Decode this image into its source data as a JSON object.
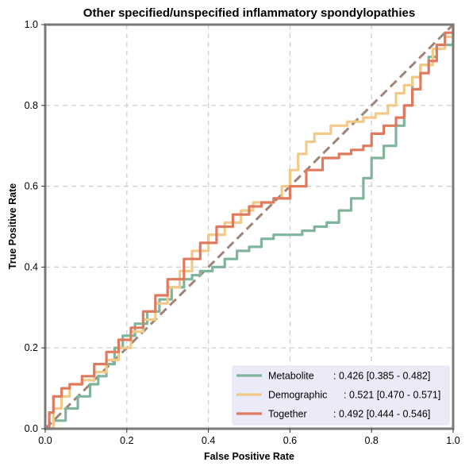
{
  "chart_data": {
    "type": "line",
    "title": "Other specified/unspecified inflammatory spondylopathies",
    "xlabel": "False Positive Rate",
    "ylabel": "True Positive Rate",
    "xlim": [
      0,
      1
    ],
    "ylim": [
      0,
      1
    ],
    "xticks": [
      "0.0",
      "0.2",
      "0.4",
      "0.6",
      "0.8",
      "1.0"
    ],
    "yticks": [
      "0.0",
      "0.2",
      "0.4",
      "0.6",
      "0.8",
      "1.0"
    ],
    "grid": true,
    "legend_position": "bottom-right",
    "diagonal": {
      "x": [
        0,
        1
      ],
      "y": [
        0,
        1
      ],
      "color": "#a08478",
      "style": "dashed"
    },
    "series": [
      {
        "name": "Metabolite",
        "label_suffix": ": 0.426 [0.385 - 0.482]",
        "color": "#7fb59a",
        "x": [
          0,
          0.02,
          0.05,
          0.08,
          0.11,
          0.13,
          0.15,
          0.17,
          0.19,
          0.22,
          0.25,
          0.28,
          0.31,
          0.34,
          0.36,
          0.38,
          0.41,
          0.44,
          0.47,
          0.5,
          0.53,
          0.56,
          0.6,
          0.63,
          0.66,
          0.69,
          0.72,
          0.75,
          0.78,
          0.8,
          0.83,
          0.86,
          0.88,
          0.9,
          0.92,
          0.94,
          0.96,
          1
        ],
        "y": [
          0,
          0.02,
          0.05,
          0.08,
          0.11,
          0.13,
          0.16,
          0.2,
          0.23,
          0.26,
          0.29,
          0.32,
          0.35,
          0.37,
          0.38,
          0.39,
          0.4,
          0.42,
          0.44,
          0.45,
          0.47,
          0.48,
          0.48,
          0.49,
          0.5,
          0.51,
          0.54,
          0.57,
          0.62,
          0.67,
          0.7,
          0.75,
          0.8,
          0.87,
          0.9,
          0.92,
          0.95,
          1
        ]
      },
      {
        "name": "Demographic",
        "label_suffix": ": 0.521 [0.470 - 0.571]",
        "color": "#f2ca88",
        "x": [
          0,
          0.02,
          0.04,
          0.06,
          0.09,
          0.12,
          0.15,
          0.18,
          0.21,
          0.24,
          0.27,
          0.3,
          0.33,
          0.36,
          0.4,
          0.44,
          0.48,
          0.51,
          0.54,
          0.56,
          0.58,
          0.6,
          0.62,
          0.64,
          0.66,
          0.7,
          0.74,
          0.78,
          0.81,
          0.84,
          0.86,
          0.88,
          0.9,
          0.92,
          0.95,
          0.98,
          1
        ],
        "y": [
          0,
          0.05,
          0.08,
          0.11,
          0.12,
          0.14,
          0.17,
          0.2,
          0.24,
          0.27,
          0.31,
          0.35,
          0.39,
          0.44,
          0.48,
          0.51,
          0.54,
          0.56,
          0.56,
          0.57,
          0.6,
          0.64,
          0.68,
          0.71,
          0.73,
          0.75,
          0.76,
          0.77,
          0.78,
          0.8,
          0.83,
          0.85,
          0.87,
          0.9,
          0.94,
          0.97,
          1
        ]
      },
      {
        "name": "Together",
        "label_suffix": ": 0.492 [0.444 - 0.546]",
        "color": "#e07a5f",
        "x": [
          0,
          0.01,
          0.02,
          0.04,
          0.06,
          0.09,
          0.12,
          0.15,
          0.18,
          0.21,
          0.24,
          0.27,
          0.3,
          0.34,
          0.38,
          0.42,
          0.46,
          0.5,
          0.53,
          0.56,
          0.6,
          0.64,
          0.68,
          0.72,
          0.75,
          0.78,
          0.8,
          0.83,
          0.86,
          0.88,
          0.9,
          0.92,
          0.94,
          0.96,
          0.98,
          1
        ],
        "y": [
          0,
          0.04,
          0.08,
          0.1,
          0.11,
          0.13,
          0.16,
          0.19,
          0.22,
          0.25,
          0.29,
          0.33,
          0.37,
          0.42,
          0.46,
          0.5,
          0.53,
          0.55,
          0.56,
          0.57,
          0.6,
          0.64,
          0.67,
          0.68,
          0.69,
          0.7,
          0.73,
          0.75,
          0.77,
          0.8,
          0.84,
          0.88,
          0.91,
          0.95,
          0.98,
          1
        ]
      }
    ]
  }
}
